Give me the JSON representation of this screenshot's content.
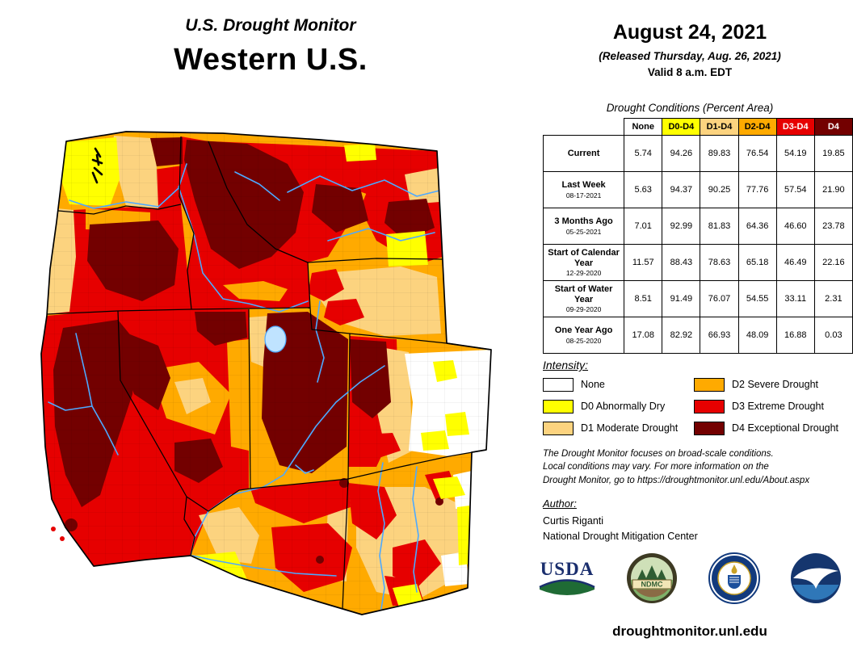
{
  "header": {
    "program": "U.S. Drought Monitor",
    "region": "Western U.S."
  },
  "date_block": {
    "date": "August 24, 2021",
    "released": "(Released Thursday, Aug. 26, 2021)",
    "valid": "Valid 8 a.m. EDT"
  },
  "table": {
    "title": "Drought Conditions (Percent Area)",
    "columns": [
      {
        "label": "None",
        "bg": "#FFFFFF",
        "fg": "#000000"
      },
      {
        "label": "D0-D4",
        "bg": "#FFFF00",
        "fg": "#000000"
      },
      {
        "label": "D1-D4",
        "bg": "#FCD37F",
        "fg": "#000000"
      },
      {
        "label": "D2-D4",
        "bg": "#FFAA00",
        "fg": "#000000"
      },
      {
        "label": "D3-D4",
        "bg": "#E60000",
        "fg": "#FFFFFF"
      },
      {
        "label": "D4",
        "bg": "#730000",
        "fg": "#FFFFFF"
      }
    ],
    "rows": [
      {
        "label": "Current",
        "sublabel": "",
        "values": [
          "5.74",
          "94.26",
          "89.83",
          "76.54",
          "54.19",
          "19.85"
        ]
      },
      {
        "label": "Last Week",
        "sublabel": "08-17-2021",
        "values": [
          "5.63",
          "94.37",
          "90.25",
          "77.76",
          "57.54",
          "21.90"
        ]
      },
      {
        "label": "3 Months Ago",
        "sublabel": "05-25-2021",
        "values": [
          "7.01",
          "92.99",
          "81.83",
          "64.36",
          "46.60",
          "23.78"
        ]
      },
      {
        "label": "Start of Calendar Year",
        "sublabel": "12-29-2020",
        "values": [
          "11.57",
          "88.43",
          "78.63",
          "65.18",
          "46.49",
          "22.16"
        ]
      },
      {
        "label": "Start of Water Year",
        "sublabel": "09-29-2020",
        "values": [
          "8.51",
          "91.49",
          "76.07",
          "54.55",
          "33.11",
          "2.31"
        ]
      },
      {
        "label": "One Year Ago",
        "sublabel": "08-25-2020",
        "values": [
          "17.08",
          "82.92",
          "66.93",
          "48.09",
          "16.88",
          "0.03"
        ]
      }
    ]
  },
  "legend": {
    "title": "Intensity:",
    "items": [
      {
        "label": "None",
        "color": "#FFFFFF"
      },
      {
        "label": "D0 Abnormally Dry",
        "color": "#FFFF00"
      },
      {
        "label": "D1 Moderate Drought",
        "color": "#FCD37F"
      },
      {
        "label": "D2 Severe Drought",
        "color": "#FFAA00"
      },
      {
        "label": "D3 Extreme Drought",
        "color": "#E60000"
      },
      {
        "label": "D4 Exceptional Drought",
        "color": "#730000"
      }
    ]
  },
  "disclaimer": {
    "lines": [
      "The Drought Monitor focuses on broad-scale conditions.",
      "Local conditions may vary. For more information on the",
      "Drought Monitor, go to https://droughtmonitor.unl.edu/About.aspx"
    ]
  },
  "author": {
    "heading": "Author:",
    "name": "Curtis Riganti",
    "org": "National Drought Mitigation Center"
  },
  "footer": {
    "url": "droughtmonitor.unl.edu"
  },
  "logos": {
    "usda_text": "USDA",
    "ndmc_text": "NDMC"
  },
  "palette": {
    "none": "#FFFFFF",
    "d0": "#FFFF00",
    "d1": "#FCD37F",
    "d2": "#FFAA00",
    "d3": "#E60000",
    "d4": "#730000",
    "river": "#4DA9FF"
  },
  "chart_data": {
    "type": "table",
    "title": "Drought Conditions (Percent Area)",
    "columns": [
      "None",
      "D0-D4",
      "D1-D4",
      "D2-D4",
      "D3-D4",
      "D4"
    ],
    "rows": [
      [
        "Current",
        5.74,
        94.26,
        89.83,
        76.54,
        54.19,
        19.85
      ],
      [
        "Last Week (08-17-2021)",
        5.63,
        94.37,
        90.25,
        77.76,
        57.54,
        21.9
      ],
      [
        "3 Months Ago (05-25-2021)",
        7.01,
        92.99,
        81.83,
        64.36,
        46.6,
        23.78
      ],
      [
        "Start of Calendar Year (12-29-2020)",
        11.57,
        88.43,
        78.63,
        65.18,
        46.49,
        22.16
      ],
      [
        "Start of Water Year (09-29-2020)",
        8.51,
        91.49,
        76.07,
        54.55,
        33.11,
        2.31
      ],
      [
        "One Year Ago (08-25-2020)",
        17.08,
        82.92,
        66.93,
        48.09,
        16.88,
        0.03
      ]
    ]
  }
}
